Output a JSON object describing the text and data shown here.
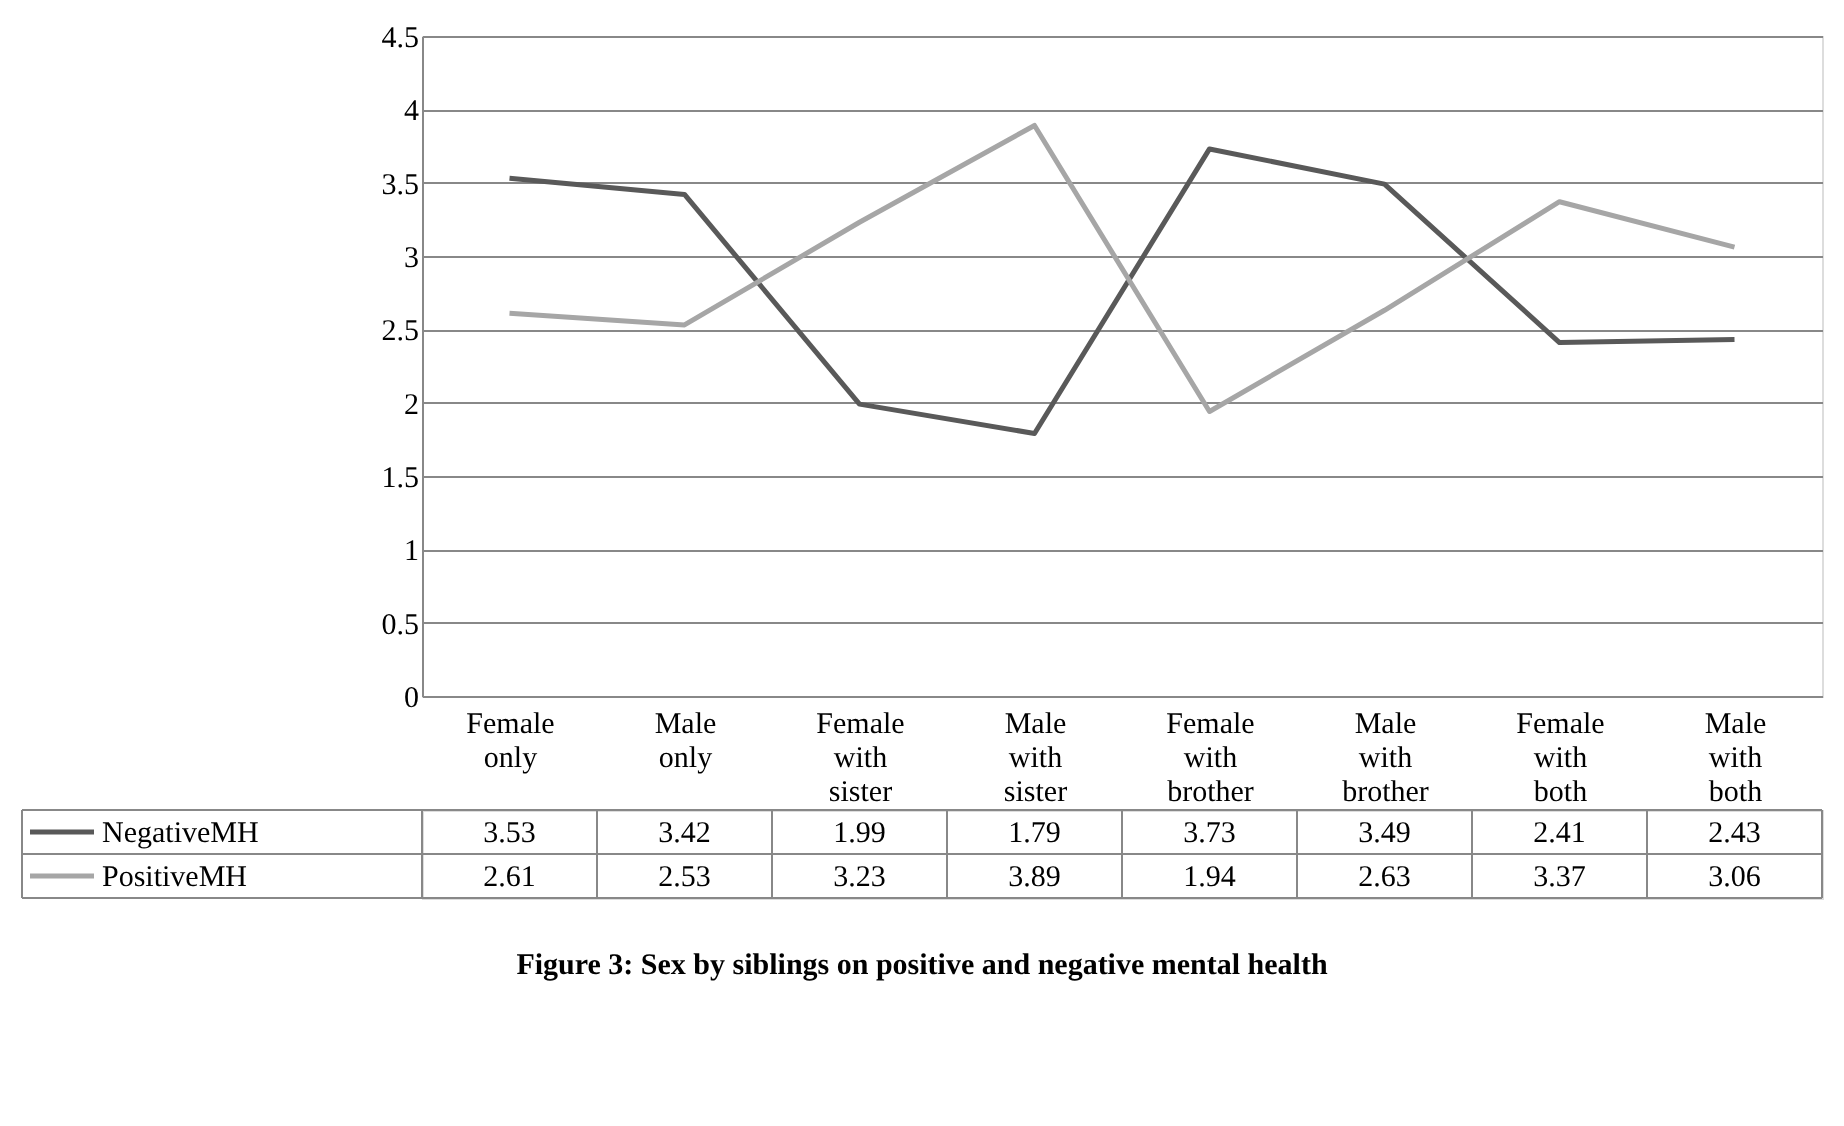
{
  "chart_data": {
    "type": "line",
    "categories": [
      "Female only",
      "Male only",
      "Female with sister",
      "Male with sister",
      "Female with brother",
      "Male with brother",
      "Female with both",
      "Male with both"
    ],
    "series": [
      {
        "name": "NegativeMH",
        "color": "#595959",
        "values": [
          3.53,
          3.42,
          1.99,
          1.79,
          3.73,
          3.49,
          2.41,
          2.43
        ]
      },
      {
        "name": "PositiveMH",
        "color": "#a6a6a6",
        "values": [
          2.61,
          2.53,
          3.23,
          3.89,
          1.94,
          2.63,
          3.37,
          3.06
        ]
      }
    ],
    "ylim": [
      0,
      4.5
    ],
    "yticks": [
      0,
      0.5,
      1,
      1.5,
      2,
      2.5,
      3,
      3.5,
      4,
      4.5
    ],
    "grid": "y",
    "legend": "bottom",
    "data_labels": true,
    "marker": "none",
    "line_style": "solid",
    "annotations": [
      "Figure 3: Sex by siblings on positive and negative mental health"
    ]
  }
}
